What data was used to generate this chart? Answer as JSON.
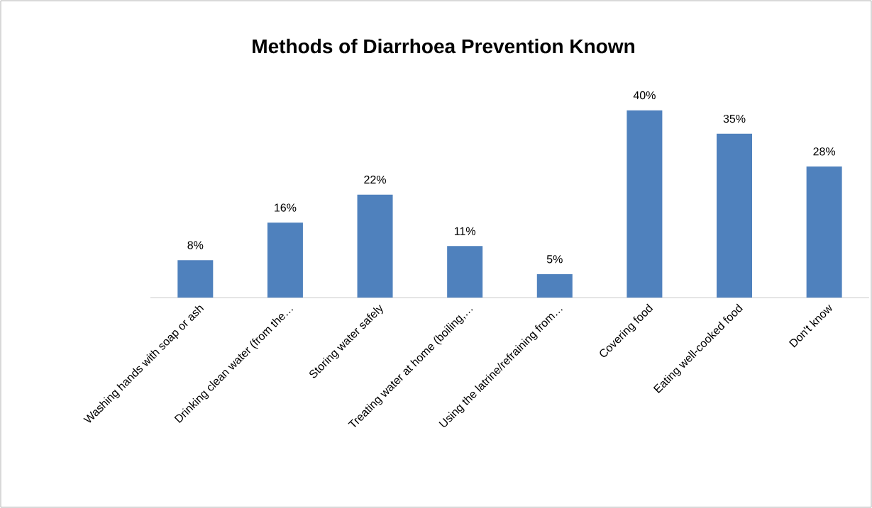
{
  "chart_data": {
    "type": "bar",
    "title": "Methods of Diarrhoea Prevention Known",
    "categories": [
      "Washing hands with soap or ash",
      "Drinking clean water (from the…",
      "Storing water safely",
      "Treating water at home (boiling,…",
      "Using the latrine/refraining from…",
      "Covering food",
      "Eating well-cooked food",
      "Don't know"
    ],
    "values": [
      8,
      16,
      22,
      11,
      5,
      40,
      35,
      28
    ],
    "value_labels": [
      "8%",
      "16%",
      "22%",
      "11%",
      "5%",
      "40%",
      "35%",
      "28%"
    ],
    "color": "#4f81bd"
  }
}
